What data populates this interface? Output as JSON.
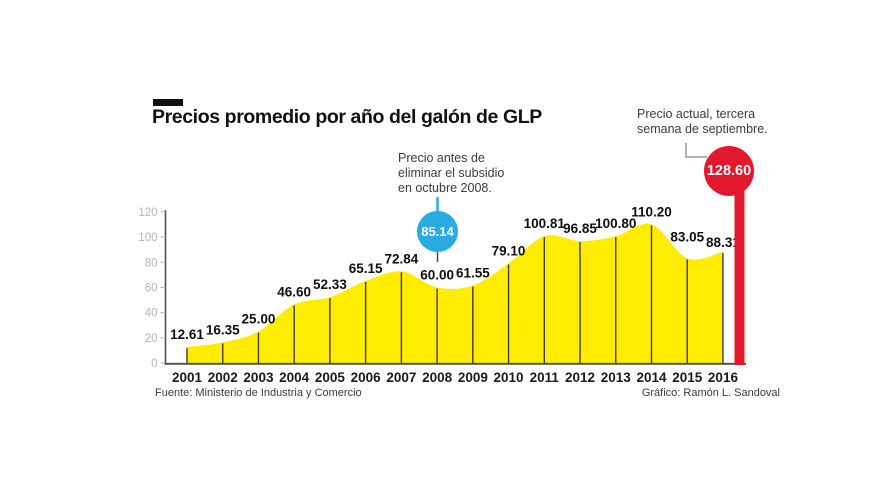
{
  "header": {
    "title": "Precios promedio por año del galón de GLP"
  },
  "annotations": {
    "subsidy": {
      "lines": [
        "Precio antes de",
        "eliminar el subsidio",
        "en octubre 2008."
      ],
      "value": "85.14"
    },
    "current": {
      "lines": [
        "Precio actual, tercera",
        "semana de septiembre."
      ],
      "value": "128.60"
    }
  },
  "footer": {
    "source": "Fuente: Ministerio de Industria y Comercio",
    "credit": "Gráfico: Ramón L. Sandoval"
  },
  "chart_data": {
    "type": "area",
    "title": "Precios promedio por año del galón de GLP",
    "categories": [
      "2001",
      "2002",
      "2003",
      "2004",
      "2005",
      "2006",
      "2007",
      "2008",
      "2009",
      "2010",
      "2011",
      "2012",
      "2013",
      "2014",
      "2015",
      "2016"
    ],
    "values": [
      12.61,
      16.35,
      25.0,
      46.6,
      52.33,
      65.15,
      72.84,
      60.0,
      61.55,
      79.1,
      100.81,
      96.85,
      100.8,
      110.2,
      83.05,
      88.31
    ],
    "value_labels": [
      "12.61",
      "16.35",
      "25.00",
      "46.60",
      "52.33",
      "65.15",
      "72.84",
      "60.00",
      "61.55",
      "79.10",
      "100.81",
      "96.85",
      "100.80",
      "110.20",
      "83.05",
      "88.31"
    ],
    "annotated_points": [
      {
        "category": "2008",
        "value": 85.14,
        "note": "Precio antes de eliminar el subsidio en octubre 2008."
      },
      {
        "category": "actual",
        "value": 128.6,
        "note": "Precio actual, tercera semana de septiembre."
      }
    ],
    "xlabel": "",
    "ylabel": "",
    "ylim": [
      0,
      120
    ],
    "yticks": [
      0,
      20,
      40,
      60,
      80,
      100,
      120
    ],
    "grid": false,
    "legend": false,
    "label_dy": {
      "2015": -9,
      "2016": 3
    },
    "colors": {
      "area": "#ffec00",
      "dropline": "#3a3a3a",
      "axis": "#4d4d4d",
      "tick_label": "#b5b5b5",
      "year_label": "#1a1a1a",
      "value_label": "#0f0f0f",
      "blue": "#29abe2",
      "red": "#e3182b",
      "connector": "#999999"
    }
  }
}
